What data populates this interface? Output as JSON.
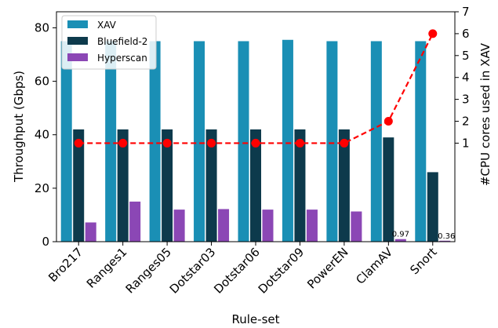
{
  "chart_data": {
    "type": "bar",
    "categories": [
      "Bro217",
      "Ranges1",
      "Ranges05",
      "Dotstar03",
      "Dotstar06",
      "Dotstar09",
      "PowerEN",
      "ClamAV",
      "Snort"
    ],
    "series": [
      {
        "name": "XAV",
        "color": "#1a8fb5",
        "values": [
          75,
          75,
          75,
          75,
          75,
          75.5,
          75,
          75,
          75
        ]
      },
      {
        "name": "Bluefield-2",
        "color": "#0d3a4c",
        "values": [
          42,
          42,
          42,
          42,
          42,
          42,
          42,
          39,
          26
        ]
      },
      {
        "name": "Hyperscan",
        "color": "#8b47b5",
        "values": [
          7.2,
          15,
          12,
          12.2,
          12,
          12,
          11.3,
          0.97,
          0.36
        ]
      }
    ],
    "secondary_series": {
      "name": "#CPU cores used in XAV",
      "color": "#ff0000",
      "style": "dashed line with circle markers",
      "values": [
        1,
        1,
        1,
        1,
        1,
        1,
        1,
        2,
        6
      ]
    },
    "data_labels": [
      "0.97",
      "0.36"
    ],
    "xlabel": "Rule-set",
    "ylabel": "Throughput (Gbps)",
    "y2label": "#CPU cores used in XAV",
    "ylim": [
      0,
      86
    ],
    "y2lim": [
      -3.5,
      7
    ],
    "yticks": [
      "0",
      "20",
      "40",
      "60",
      "80"
    ],
    "y2ticks": [
      "1",
      "2",
      "3",
      "4",
      "5",
      "6",
      "7"
    ],
    "legend": {
      "position": "top-left",
      "entries": [
        "XAV",
        "Bluefield-2",
        "Hyperscan"
      ]
    },
    "grid": false
  }
}
